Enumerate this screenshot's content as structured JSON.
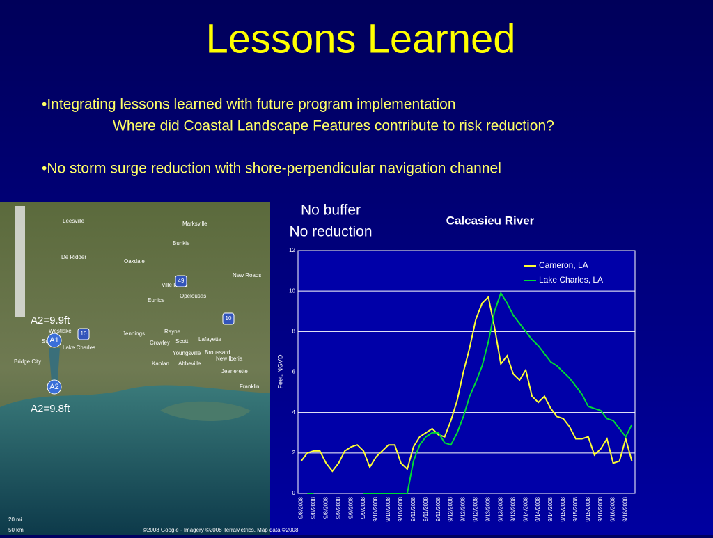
{
  "slide": {
    "title": "Lessons Learned",
    "bullets": [
      "•Integrating lessons learned with future program implementation",
      "Where did Coastal Landscape Features contribute to risk reduction?",
      "•No storm surge reduction with shore-perpendicular navigation channel"
    ],
    "annotation": [
      "No buffer",
      "No reduction"
    ]
  },
  "map": {
    "labels": [
      "Leesville",
      "Marksville",
      "Bunkie",
      "De Ridder",
      "Oakdale",
      "New Roads",
      "Ville Platte",
      "Opelousas",
      "Eunice",
      "Jennings",
      "Crowley",
      "Lafayette",
      "Rayne",
      "Scott",
      "Kaplan",
      "Abbeville",
      "Youngsville",
      "Broussard",
      "New Iberia",
      "Jeanerette",
      "Franklin",
      "Westlake",
      "Lake Charles",
      "Sulphur",
      "Bridge City",
      "49",
      "10",
      "10"
    ],
    "markers": [
      "A1",
      "A2"
    ],
    "callouts": [
      "A2=9.9ft",
      "A2=9.8ft"
    ],
    "scale": [
      "20 mi",
      "50 km"
    ],
    "copyright": "©2008 Google - Imagery ©2008 TerraMetrics, Map data ©2008"
  },
  "chart_data": {
    "type": "line",
    "title": "Calcasieu River",
    "y_label": "Feet, NGVD",
    "categories": [
      "9/8/2008",
      null,
      "9/8/2008",
      null,
      "9/8/2008",
      null,
      "9/9/2008",
      null,
      "9/9/2008",
      null,
      "9/9/2008",
      null,
      "9/10/2008",
      null,
      "9/10/2008",
      null,
      "9/10/2008",
      null,
      "9/11/2008",
      null,
      "9/11/2008",
      null,
      "9/11/2008",
      null,
      "9/12/2008",
      null,
      "9/12/2008",
      null,
      "9/12/2008",
      null,
      "9/13/2008",
      null,
      "9/13/2008",
      null,
      "9/13/2008",
      null,
      "9/14/2008",
      null,
      "9/14/2008",
      null,
      "9/14/2008",
      null,
      "9/15/2008",
      null,
      "9/15/2008",
      null,
      "9/15/2008",
      null,
      "9/16/2008",
      null,
      "9/16/2008",
      null,
      "9/16/2008",
      null
    ],
    "series": [
      {
        "name": "Cameron, LA",
        "color": "#ffff33",
        "values": [
          1.6,
          2.0,
          2.1,
          2.1,
          1.5,
          1.1,
          1.5,
          2.1,
          2.3,
          2.4,
          2.1,
          1.3,
          1.8,
          2.1,
          2.4,
          2.4,
          1.5,
          1.2,
          2.3,
          2.8,
          3.0,
          3.2,
          2.9,
          2.8,
          3.6,
          4.6,
          6.0,
          7.2,
          8.6,
          9.4,
          9.7,
          8.2,
          6.4,
          6.8,
          5.9,
          5.6,
          6.1,
          4.8,
          4.5,
          4.8,
          4.2,
          3.8,
          3.7,
          3.3,
          2.7,
          2.7,
          2.8,
          1.9,
          2.2,
          2.7,
          1.5,
          1.6,
          2.7,
          1.6
        ]
      },
      {
        "name": "Lake Charles, LA",
        "color": "#00dd33",
        "values": [
          null,
          0,
          0,
          null,
          null,
          null,
          null,
          null,
          null,
          null,
          0,
          0,
          0,
          0,
          0,
          0,
          0,
          0,
          1.6,
          2.4,
          2.8,
          3.0,
          3.0,
          2.5,
          2.4,
          3.0,
          3.8,
          4.8,
          5.5,
          6.3,
          7.5,
          9.0,
          9.9,
          9.4,
          8.8,
          8.4,
          8.0,
          7.6,
          7.3,
          6.9,
          6.5,
          6.3,
          6.0,
          5.7,
          5.3,
          4.9,
          4.3,
          4.2,
          4.1,
          3.7,
          3.6,
          3.2,
          2.8,
          3.4
        ]
      }
    ],
    "ylim": [
      0,
      12
    ],
    "yticks": [
      0,
      2,
      4,
      6,
      8,
      10,
      12
    ],
    "grid": true,
    "legend": "top-right"
  }
}
